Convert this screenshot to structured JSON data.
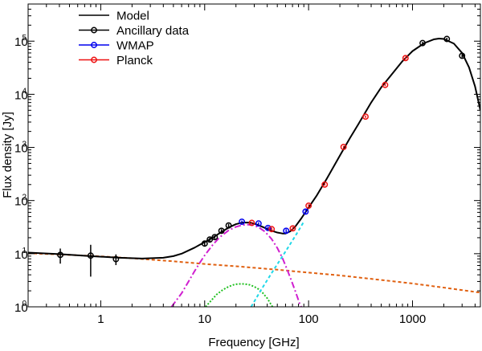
{
  "chart_data": {
    "type": "scatter",
    "xlabel": "Frequency [GHz]",
    "ylabel": "Flux density [Jy]",
    "xscale": "log",
    "yscale": "log",
    "xlim": [
      0.2,
      4500
    ],
    "ylim": [
      1,
      500000
    ],
    "x_ticks": [
      {
        "value": 1,
        "label": "1"
      },
      {
        "value": 10,
        "label": "10"
      },
      {
        "value": 100,
        "label": "100"
      },
      {
        "value": 1000,
        "label": "1000"
      }
    ],
    "y_ticks": [
      {
        "value": 1,
        "base": "10",
        "exp": "0"
      },
      {
        "value": 10,
        "base": "10",
        "exp": "1"
      },
      {
        "value": 100,
        "base": "10",
        "exp": "2"
      },
      {
        "value": 1000,
        "base": "10",
        "exp": "3"
      },
      {
        "value": 10000,
        "base": "10",
        "exp": "4"
      },
      {
        "value": 100000,
        "base": "10",
        "exp": "5"
      }
    ],
    "legend_position": "top-left",
    "legend": [
      {
        "label": "Model",
        "color": "#000000",
        "marker": false
      },
      {
        "label": "Ancillary data",
        "color": "#000000",
        "marker": true
      },
      {
        "label": "WMAP",
        "color": "#0000ee",
        "marker": true
      },
      {
        "label": "Planck",
        "color": "#ee1111",
        "marker": true
      }
    ],
    "series": [
      {
        "name": "Ancillary data",
        "color": "#000000",
        "points": [
          {
            "x": 0.408,
            "y": 9.5,
            "err": 3.0
          },
          {
            "x": 0.8,
            "y": 9.2,
            "err": 5.5
          },
          {
            "x": 1.4,
            "y": 7.9,
            "err": 1.8
          },
          {
            "x": 10,
            "y": 15.5,
            "err": 1.5
          },
          {
            "x": 11.2,
            "y": 18.5,
            "err": 1.5
          },
          {
            "x": 12.5,
            "y": 20.5,
            "err": 1.5
          },
          {
            "x": 14.5,
            "y": 27,
            "err": 2
          },
          {
            "x": 17,
            "y": 34,
            "err": 2.5
          },
          {
            "x": 1250,
            "y": 92000,
            "err": 5000
          },
          {
            "x": 2140,
            "y": 110000,
            "err": 6000
          },
          {
            "x": 3000,
            "y": 53000,
            "err": 4000
          }
        ]
      },
      {
        "name": "WMAP",
        "color": "#0000ee",
        "points": [
          {
            "x": 22.8,
            "y": 40,
            "err": 2
          },
          {
            "x": 33,
            "y": 37,
            "err": 2
          },
          {
            "x": 40.7,
            "y": 30.5,
            "err": 2
          },
          {
            "x": 60.8,
            "y": 27,
            "err": 2
          },
          {
            "x": 93.5,
            "y": 62,
            "err": 5
          }
        ]
      },
      {
        "name": "Planck",
        "color": "#ee1111",
        "points": [
          {
            "x": 28.4,
            "y": 38,
            "err": 2
          },
          {
            "x": 44.1,
            "y": 29,
            "err": 2
          },
          {
            "x": 70.4,
            "y": 30,
            "err": 2
          },
          {
            "x": 100,
            "y": 80,
            "err": 5
          },
          {
            "x": 143,
            "y": 200,
            "err": 10
          },
          {
            "x": 217,
            "y": 1020,
            "err": 50
          },
          {
            "x": 353,
            "y": 3800,
            "err": 200
          },
          {
            "x": 545,
            "y": 15000,
            "err": 800
          },
          {
            "x": 857,
            "y": 48000,
            "err": 3000
          }
        ]
      }
    ],
    "components": [
      {
        "role": "total-model",
        "color": "#000000",
        "dash": "",
        "width": 2,
        "points": [
          [
            0.2,
            10.5
          ],
          [
            0.4,
            9.8
          ],
          [
            0.8,
            9
          ],
          [
            1.5,
            8.4
          ],
          [
            2.5,
            8.1
          ],
          [
            4,
            8.4
          ],
          [
            5,
            9
          ],
          [
            6,
            10
          ],
          [
            7,
            11.5
          ],
          [
            8,
            13
          ],
          [
            9,
            14.8
          ],
          [
            10,
            16.5
          ],
          [
            12,
            20
          ],
          [
            14,
            24.5
          ],
          [
            17,
            31
          ],
          [
            20,
            36
          ],
          [
            23,
            38.5
          ],
          [
            27,
            38.5
          ],
          [
            31,
            36
          ],
          [
            36,
            32
          ],
          [
            42,
            28
          ],
          [
            50,
            25
          ],
          [
            56,
            24
          ],
          [
            60,
            24
          ],
          [
            67,
            26.5
          ],
          [
            75,
            33
          ],
          [
            85,
            46
          ],
          [
            100,
            74
          ],
          [
            120,
            125
          ],
          [
            150,
            260
          ],
          [
            200,
            700
          ],
          [
            250,
            1500
          ],
          [
            300,
            2700
          ],
          [
            400,
            7000
          ],
          [
            500,
            13500
          ],
          [
            600,
            21000
          ],
          [
            800,
            42000
          ],
          [
            1000,
            65000
          ],
          [
            1300,
            92000
          ],
          [
            1600,
            108000
          ],
          [
            1800,
            112000
          ],
          [
            2000,
            110000
          ],
          [
            2500,
            90000
          ],
          [
            3000,
            60000
          ],
          [
            3500,
            32000
          ],
          [
            4000,
            14000
          ],
          [
            4500,
            5000
          ]
        ]
      },
      {
        "role": "orange-dashed",
        "color": "#e06010",
        "dash": "4,3",
        "width": 2,
        "points": [
          [
            0.2,
            10.2
          ],
          [
            0.5,
            9.5
          ],
          [
            1,
            8.9
          ],
          [
            2,
            8.2
          ],
          [
            5,
            7.2
          ],
          [
            10,
            6.4
          ],
          [
            20,
            5.8
          ],
          [
            50,
            5
          ],
          [
            100,
            4.4
          ],
          [
            200,
            3.9
          ],
          [
            500,
            3.2
          ],
          [
            1000,
            2.75
          ],
          [
            2000,
            2.3
          ],
          [
            4500,
            1.85
          ]
        ]
      },
      {
        "role": "magenta-dashdot",
        "color": "#d020d0",
        "dash": "8,3,2,3",
        "width": 2,
        "points": [
          [
            4.8,
            1
          ],
          [
            6,
            1.8
          ],
          [
            7,
            3
          ],
          [
            8,
            4.7
          ],
          [
            9,
            6.8
          ],
          [
            10,
            9.3
          ],
          [
            12,
            14.8
          ],
          [
            14,
            20.5
          ],
          [
            17,
            27.5
          ],
          [
            20,
            32
          ],
          [
            23,
            34.5
          ],
          [
            26,
            35.2
          ],
          [
            29,
            34.5
          ],
          [
            33,
            31.5
          ],
          [
            38,
            26
          ],
          [
            44,
            19
          ],
          [
            50,
            12.8
          ],
          [
            56,
            8.3
          ],
          [
            62,
            5.1
          ],
          [
            68,
            3.2
          ],
          [
            75,
            1.9
          ],
          [
            82,
            1.15
          ],
          [
            85,
            1
          ]
        ]
      },
      {
        "role": "green-dotted",
        "color": "#20c020",
        "dash": "2,2",
        "width": 2,
        "points": [
          [
            10.2,
            1
          ],
          [
            11.5,
            1.3
          ],
          [
            13,
            1.7
          ],
          [
            15,
            2.1
          ],
          [
            17,
            2.4
          ],
          [
            19,
            2.6
          ],
          [
            21,
            2.7
          ],
          [
            24,
            2.7
          ],
          [
            27,
            2.6
          ],
          [
            30,
            2.4
          ],
          [
            33,
            2.15
          ],
          [
            36,
            1.85
          ],
          [
            40,
            1.45
          ],
          [
            43,
            1.15
          ],
          [
            45,
            1
          ]
        ]
      },
      {
        "role": "cyan-dashed",
        "color": "#20d8e8",
        "dash": "4,3",
        "width": 2,
        "points": [
          [
            28,
            1
          ],
          [
            35,
            2.1
          ],
          [
            45,
            4.6
          ],
          [
            60,
            11
          ],
          [
            75,
            22
          ],
          [
            90,
            40
          ]
        ]
      }
    ]
  }
}
